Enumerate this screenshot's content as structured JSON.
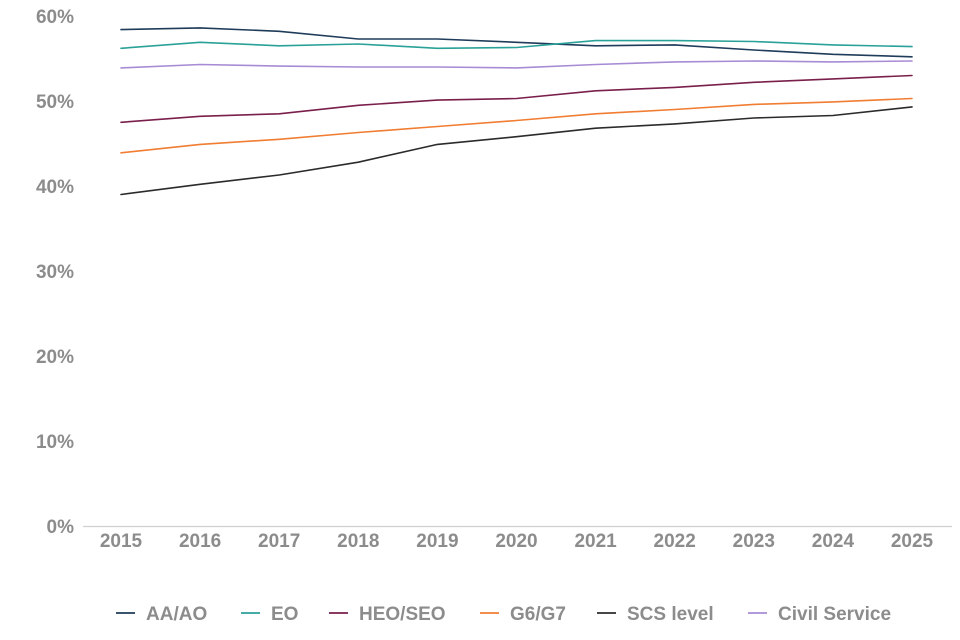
{
  "chart_data": {
    "type": "line",
    "title": "",
    "xlabel": "",
    "ylabel": "",
    "x": [
      "2015",
      "2016",
      "2017",
      "2018",
      "2019",
      "2020",
      "2021",
      "2022",
      "2023",
      "2024",
      "2025"
    ],
    "ylim": [
      0,
      60
    ],
    "yticks": [
      0,
      10,
      20,
      30,
      40,
      50,
      60
    ],
    "ytick_labels": [
      "0%",
      "10%",
      "20%",
      "30%",
      "40%",
      "50%",
      "60%"
    ],
    "grid": false,
    "legend_position": "bottom",
    "series": [
      {
        "name": "AA/AO",
        "color": "#1f3c5a",
        "values": [
          58.4,
          58.6,
          58.2,
          57.3,
          57.3,
          56.9,
          56.5,
          56.6,
          56.0,
          55.5,
          55.2
        ]
      },
      {
        "name": "EO",
        "color": "#2aa198",
        "values": [
          56.2,
          56.9,
          56.5,
          56.7,
          56.2,
          56.3,
          57.1,
          57.1,
          57.0,
          56.6,
          56.4
        ]
      },
      {
        "name": "HEO/SEO",
        "color": "#7a1f4b",
        "values": [
          47.5,
          48.2,
          48.5,
          49.5,
          50.1,
          50.3,
          51.2,
          51.6,
          52.2,
          52.6,
          53.0
        ]
      },
      {
        "name": "G6/G7",
        "color": "#f07d32",
        "values": [
          43.9,
          44.9,
          45.5,
          46.3,
          47.0,
          47.7,
          48.5,
          49.0,
          49.6,
          49.9,
          50.3
        ]
      },
      {
        "name": "SCS level",
        "color": "#2b2b2b",
        "values": [
          39.0,
          40.2,
          41.3,
          42.8,
          44.9,
          45.8,
          46.8,
          47.3,
          48.0,
          48.3,
          49.3
        ]
      },
      {
        "name": "Civil Service",
        "color": "#a78bd4",
        "values": [
          53.9,
          54.3,
          54.1,
          54.0,
          54.0,
          53.9,
          54.3,
          54.6,
          54.7,
          54.6,
          54.7
        ]
      }
    ]
  }
}
